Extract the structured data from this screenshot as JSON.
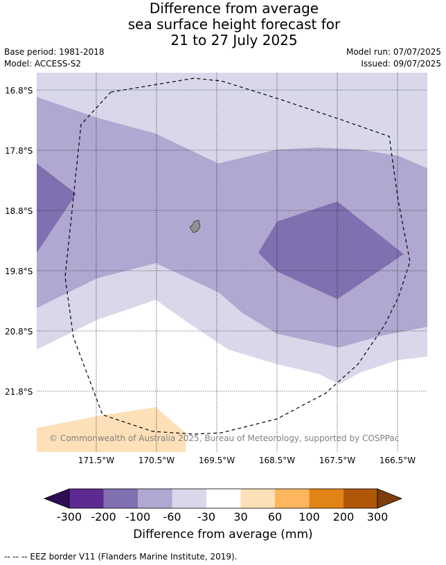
{
  "title": {
    "line1": "Difference from average",
    "line2": "sea surface height forecast for",
    "line3": "21 to 27 July 2025"
  },
  "meta": {
    "base_period": "Base period: 1981-2018",
    "model": "Model: ACCESS-S2",
    "model_run": "Model run: 07/07/2025",
    "issued": "Issued: 09/07/2025"
  },
  "map": {
    "lat_labels": [
      "16.8°S",
      "17.8°S",
      "18.8°S",
      "19.8°S",
      "20.8°S",
      "21.8°S"
    ],
    "lon_labels": [
      "171.5°W",
      "170.5°W",
      "169.5°W",
      "168.5°W",
      "167.5°W",
      "166.5°W"
    ],
    "copyright": "© Commonwealth of Australia 2025, Bureau of Meteorology, supported by COSPPac",
    "colors": {
      "c_minus100_minus60": "#b0a8d0",
      "c_minus200_minus100": "#8070b0",
      "c_minus60_minus30": "#d8d8ea",
      "c_30_60": "#fde0b8",
      "land": "#909090"
    }
  },
  "colorbar": {
    "label": "Difference from average (mm)",
    "ticks": [
      "-300",
      "-200",
      "-100",
      "-60",
      "-30",
      "30",
      "60",
      "100",
      "200",
      "300"
    ],
    "colors": [
      "#2e0d55",
      "#5c2a90",
      "#8070b0",
      "#b0a8d0",
      "#d8d8ea",
      "#ffffff",
      "#fde0b8",
      "#fbb65e",
      "#e28315",
      "#b05707",
      "#7f3c0c"
    ]
  },
  "footer": "--  --  -- EEZ border V11 (Flanders Marine Institute, 2019)."
}
